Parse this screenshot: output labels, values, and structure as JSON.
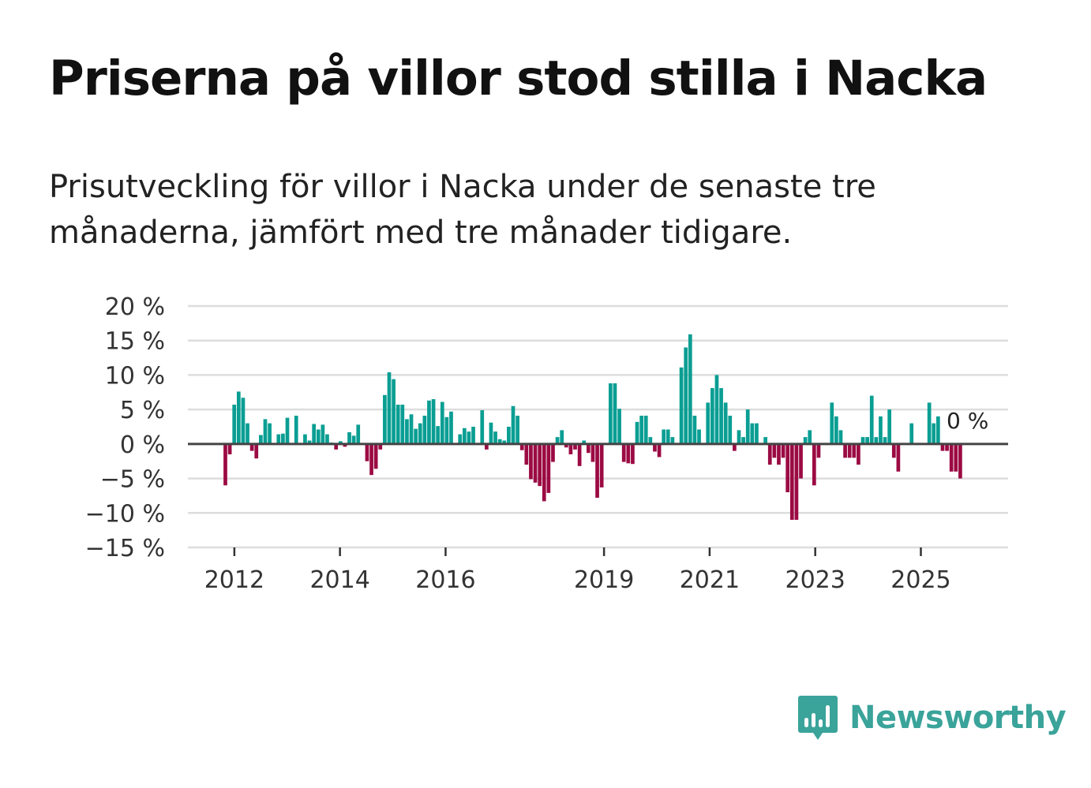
{
  "title": "Priserna på villor stod stilla i Nacka",
  "subtitle": "Prisutveckling för villor i Nacka under de senaste tre månaderna, jämfört med tre månader tidigare.",
  "brand": {
    "name": "Newsworthy",
    "color": "#3aa39a",
    "icon": "bar-chart-speech-bubble-icon"
  },
  "colors": {
    "positive": "#0a9e93",
    "negative": "#9b0a43",
    "zero_line": "#444444",
    "grid": "#dddddd"
  },
  "chart_data": {
    "type": "bar",
    "title": "Priserna på villor stod stilla i Nacka",
    "xlabel": "",
    "ylabel": "",
    "ylim": [
      -15,
      20
    ],
    "yticks": [
      20,
      15,
      10,
      5,
      0,
      -5,
      -10,
      -15
    ],
    "ytick_labels": [
      "20 %",
      "15 %",
      "10 %",
      "5 %",
      "0 %",
      "−5 %",
      "−10 %",
      "−15 %"
    ],
    "xticks": [
      2012,
      2014,
      2016,
      2019,
      2021,
      2023,
      2025
    ],
    "xtick_labels": [
      "2012",
      "2014",
      "2016",
      "2019",
      "2021",
      "2023",
      "2025"
    ],
    "x_start": 2011.83,
    "x_end": 2025.83,
    "end_label": "0 %",
    "series": [
      {
        "name": "Prisutveckling",
        "values": [
          -6,
          -1.5,
          5.7,
          7.6,
          6.7,
          3,
          -1,
          -2.1,
          1.3,
          3.6,
          3,
          0,
          1.4,
          1.5,
          3.8,
          0,
          4.1,
          0,
          1.4,
          0.5,
          2.9,
          2.1,
          2.8,
          1.4,
          0.2,
          -0.8,
          0.4,
          -0.4,
          1.7,
          1.2,
          2.8,
          0,
          -2.5,
          -4.5,
          -3.6,
          -0.8,
          7.1,
          10.4,
          9.4,
          5.7,
          5.7,
          3.6,
          4.3,
          2.2,
          3,
          4.1,
          6.3,
          6.5,
          2.6,
          6.1,
          3.9,
          4.7,
          0,
          1.4,
          2.3,
          1.8,
          2.5,
          0,
          4.9,
          -0.8,
          3.1,
          1.8,
          0.7,
          0.5,
          2.5,
          5.5,
          4.1,
          -0.9,
          -3,
          -5.1,
          -5.6,
          -6.1,
          -8.3,
          -7.1,
          -2.6,
          1,
          2,
          -0.5,
          -1.5,
          -0.8,
          -3.2,
          0.5,
          -1.3,
          -2.6,
          -7.8,
          -6.3,
          0,
          8.8,
          8.8,
          5.1,
          -2.6,
          -2.8,
          -2.9,
          3.2,
          4.1,
          4.1,
          1,
          -1.1,
          -1.9,
          2.1,
          2.1,
          1,
          0,
          11.1,
          14,
          15.9,
          4.1,
          2.1,
          0,
          6,
          8.1,
          10,
          8.1,
          6,
          4.1,
          -1,
          2,
          1,
          5,
          3,
          3,
          0,
          1,
          -3,
          -2,
          -3,
          -2,
          -7,
          -11,
          -11,
          -5,
          1,
          2,
          -6,
          -2,
          0,
          0,
          6,
          4,
          2,
          -2,
          -2,
          -2,
          -3,
          1,
          1,
          7,
          1,
          4,
          1,
          5,
          -2,
          -4,
          0,
          0,
          3,
          0,
          0,
          0,
          6,
          3,
          4,
          -1,
          -1,
          -4,
          -4,
          -5,
          0
        ]
      }
    ]
  }
}
